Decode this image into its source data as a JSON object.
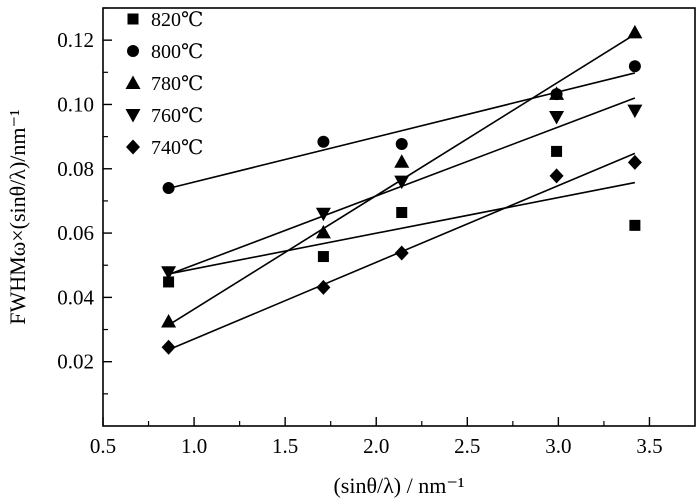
{
  "chart_data": {
    "type": "scatter",
    "xlabel": "(sinθ/λ) / nm⁻¹",
    "ylabel": "FWHMω×(sinθ/λ)/nm⁻¹",
    "xlim": [
      0.5,
      3.75
    ],
    "ylim": [
      0.0,
      0.13
    ],
    "xticks": [
      0.5,
      1.0,
      1.5,
      2.0,
      2.5,
      3.0,
      3.5
    ],
    "yticks": [
      0.02,
      0.04,
      0.06,
      0.08,
      0.1,
      0.12
    ],
    "xtick_labels": [
      "0.5",
      "1.0",
      "1.5",
      "2.0",
      "2.5",
      "3.0",
      "3.5"
    ],
    "ytick_labels": [
      "0.02",
      "0.04",
      "0.06",
      "0.08",
      "0.10",
      "0.12"
    ],
    "legend_position": "top-left",
    "series": [
      {
        "name": "820℃",
        "marker": "square",
        "x": [
          0.86,
          1.71,
          2.14,
          2.99,
          3.42
        ],
        "y": [
          0.0448,
          0.0527,
          0.0664,
          0.0854,
          0.0624
        ],
        "fit": [
          [
            0.86,
            0.0473
          ],
          [
            3.42,
            0.0757
          ]
        ]
      },
      {
        "name": "800℃",
        "marker": "circle",
        "x": [
          0.86,
          1.71,
          2.14,
          2.99,
          3.42
        ],
        "y": [
          0.074,
          0.0884,
          0.0877,
          0.1032,
          0.1119
        ],
        "fit": [
          [
            0.86,
            0.0739
          ],
          [
            3.42,
            0.1098
          ]
        ]
      },
      {
        "name": "780℃",
        "marker": "triangle-up",
        "x": [
          0.86,
          1.71,
          2.14,
          2.99,
          3.42
        ],
        "y": [
          0.0325,
          0.0602,
          0.0822,
          0.1033,
          0.1224
        ],
        "fit": [
          [
            0.86,
            0.0314
          ],
          [
            3.42,
            0.1218
          ]
        ]
      },
      {
        "name": "760℃",
        "marker": "triangle-down",
        "x": [
          0.86,
          1.71,
          2.14,
          2.99,
          3.42
        ],
        "y": [
          0.0478,
          0.066,
          0.076,
          0.0961,
          0.0981
        ],
        "fit": [
          [
            0.86,
            0.0471
          ],
          [
            3.42,
            0.102
          ]
        ]
      },
      {
        "name": "740℃",
        "marker": "diamond",
        "x": [
          0.86,
          1.71,
          2.14,
          2.99,
          3.42
        ],
        "y": [
          0.0245,
          0.0431,
          0.0538,
          0.0778,
          0.082
        ],
        "fit": [
          [
            0.86,
            0.0237
          ],
          [
            3.42,
            0.0848
          ]
        ]
      }
    ]
  }
}
